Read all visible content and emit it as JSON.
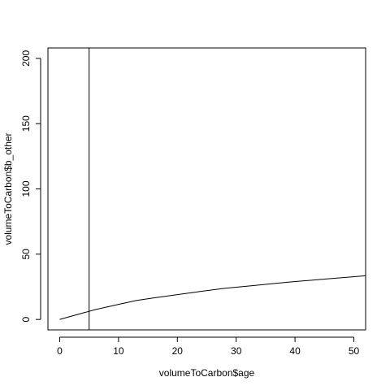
{
  "chart_data": {
    "type": "line",
    "title": "",
    "xlabel": "volumeToCarbon$age",
    "ylabel": "volumeToCarbon$b_other",
    "xlim": [
      -2,
      52
    ],
    "ylim": [
      -8,
      208
    ],
    "x_ticks": [
      0,
      10,
      20,
      30,
      40,
      50
    ],
    "y_ticks": [
      0,
      50,
      100,
      150,
      200
    ],
    "grid": false,
    "vline_x": 5,
    "series": [
      {
        "x": [
          0,
          2,
          4,
          5,
          6,
          8,
          10,
          13,
          16,
          20,
          24,
          28,
          32,
          36,
          40,
          44,
          48,
          52
        ],
        "y": [
          0,
          2.5,
          5.0,
          6.2,
          7.5,
          9.5,
          11.5,
          14.5,
          16.5,
          19.0,
          21.5,
          23.8,
          25.5,
          27.3,
          29.0,
          30.5,
          32.0,
          33.5
        ]
      }
    ]
  }
}
